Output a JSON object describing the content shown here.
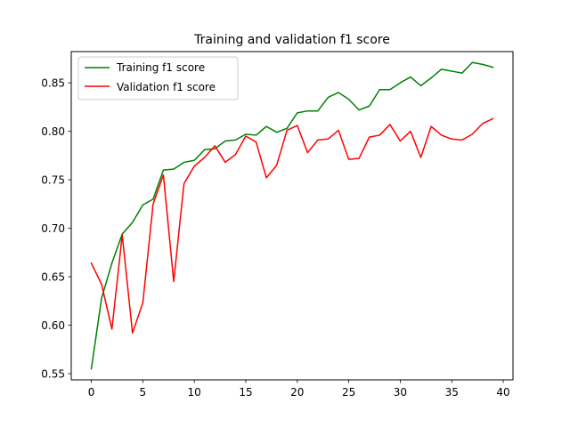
{
  "chart_data": {
    "type": "line",
    "title": "Training and validation f1 score",
    "xlabel": "",
    "ylabel": "",
    "xlim": [
      -1.95,
      40.95
    ],
    "ylim": [
      0.5436,
      0.8822
    ],
    "x_ticks": [
      "0",
      "5",
      "10",
      "15",
      "20",
      "25",
      "30",
      "35",
      "40"
    ],
    "y_ticks": [
      "0.55",
      "0.60",
      "0.65",
      "0.70",
      "0.75",
      "0.80",
      "0.85"
    ],
    "legend_position": "upper-left",
    "grid": false,
    "x": [
      0,
      1,
      2,
      3,
      4,
      5,
      6,
      7,
      8,
      9,
      10,
      11,
      12,
      13,
      14,
      15,
      16,
      17,
      18,
      19,
      20,
      21,
      22,
      23,
      24,
      25,
      26,
      27,
      28,
      29,
      30,
      31,
      32,
      33,
      34,
      35,
      36,
      37,
      38,
      39
    ],
    "series": [
      {
        "name": "Training f1 score",
        "color": "#008000",
        "values": [
          0.555,
          0.628,
          0.664,
          0.694,
          0.706,
          0.724,
          0.73,
          0.76,
          0.761,
          0.768,
          0.77,
          0.781,
          0.782,
          0.79,
          0.791,
          0.797,
          0.796,
          0.805,
          0.799,
          0.803,
          0.819,
          0.821,
          0.821,
          0.835,
          0.84,
          0.833,
          0.822,
          0.826,
          0.843,
          0.843,
          0.85,
          0.856,
          0.847,
          0.855,
          0.864,
          0.862,
          0.86,
          0.871,
          0.869,
          0.866
        ]
      },
      {
        "name": "Validation f1 score",
        "color": "#ff0000",
        "values": [
          0.664,
          0.642,
          0.596,
          0.693,
          0.592,
          0.623,
          0.725,
          0.755,
          0.645,
          0.746,
          0.764,
          0.773,
          0.785,
          0.768,
          0.776,
          0.795,
          0.789,
          0.752,
          0.765,
          0.801,
          0.806,
          0.778,
          0.791,
          0.792,
          0.801,
          0.771,
          0.772,
          0.794,
          0.796,
          0.807,
          0.79,
          0.8,
          0.773,
          0.805,
          0.796,
          0.792,
          0.791,
          0.797,
          0.808,
          0.813
        ]
      }
    ]
  }
}
